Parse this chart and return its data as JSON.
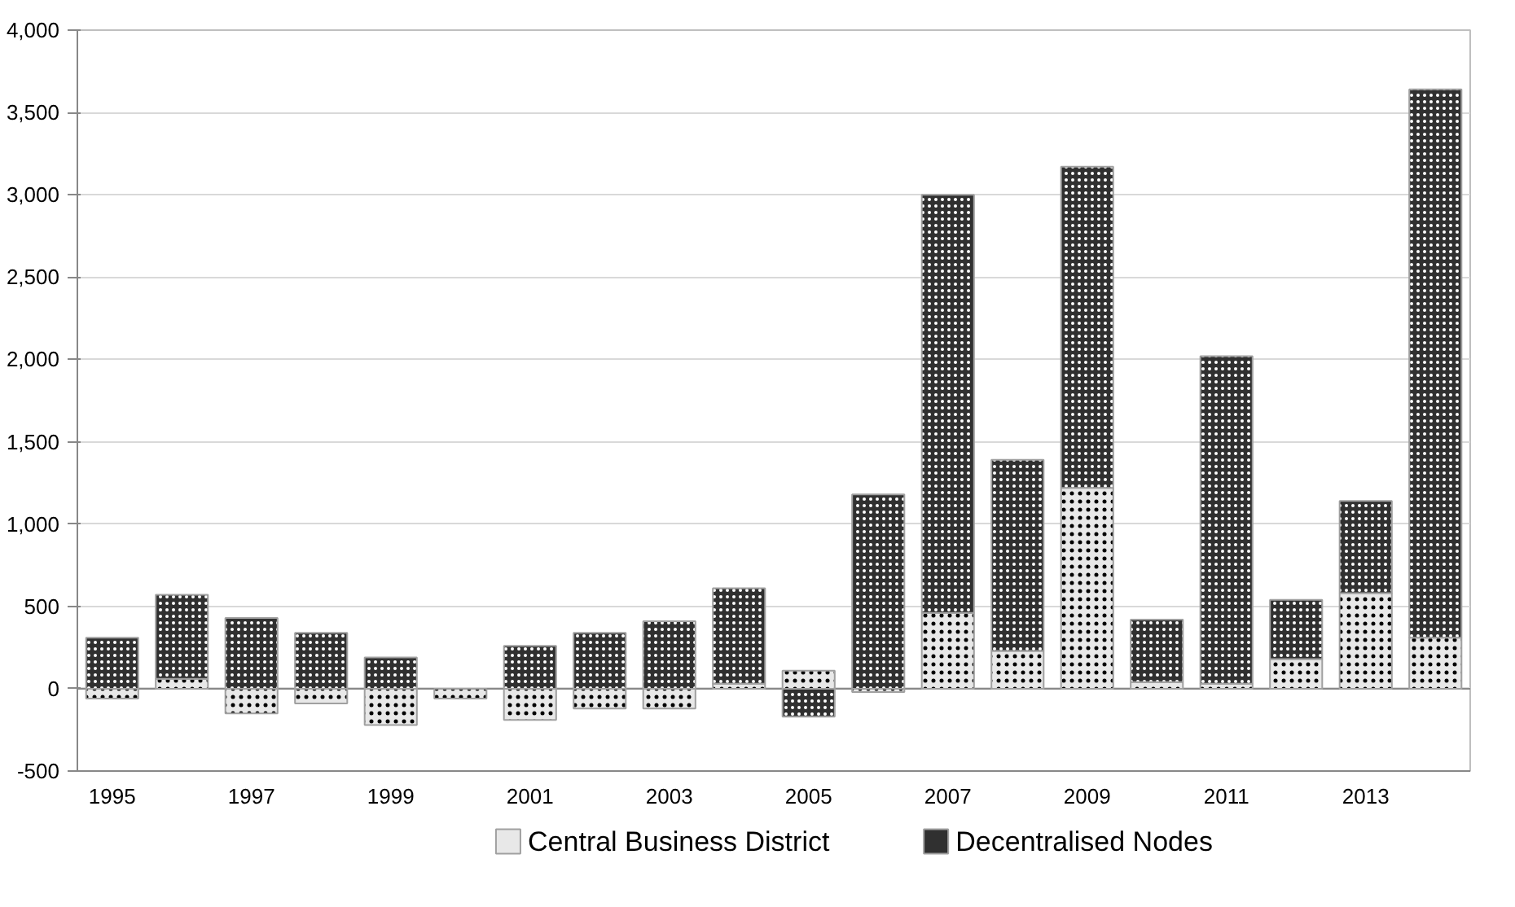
{
  "chart_data": {
    "type": "bar",
    "stacked": true,
    "categories": [
      "1995",
      null,
      "1997",
      null,
      "1999",
      null,
      "2001",
      null,
      "2003",
      null,
      "2005",
      null,
      "2007",
      null,
      "2009",
      null,
      "2011",
      null,
      "2013",
      null
    ],
    "series": [
      {
        "name": "Central Business District",
        "color": "#e8e8e8",
        "values": [
          -60,
          60,
          -150,
          -90,
          -220,
          -60,
          -190,
          -120,
          -120,
          30,
          110,
          -20,
          460,
          230,
          1220,
          40,
          30,
          180,
          580,
          310
        ]
      },
      {
        "name": "Decentralised Nodes",
        "color": "#303030",
        "values": [
          310,
          510,
          430,
          340,
          190,
          null,
          260,
          340,
          410,
          580,
          -170,
          1180,
          2540,
          1160,
          1950,
          380,
          1990,
          360,
          560,
          3330
        ]
      }
    ],
    "ylim": [
      -500,
      4000
    ],
    "yticks": [
      {
        "value": -500,
        "label": "-500"
      },
      {
        "value": 0,
        "label": "0"
      },
      {
        "value": 500,
        "label": "500"
      },
      {
        "value": 1000,
        "label": "1,000"
      },
      {
        "value": 1500,
        "label": "1,500"
      },
      {
        "value": 2000,
        "label": "2,000"
      },
      {
        "value": 2500,
        "label": "2,500"
      },
      {
        "value": 3000,
        "label": "3,000"
      },
      {
        "value": 3500,
        "label": "3,500"
      },
      {
        "value": 4000,
        "label": "4,000"
      }
    ],
    "grid": "y",
    "legend": "bottom"
  }
}
